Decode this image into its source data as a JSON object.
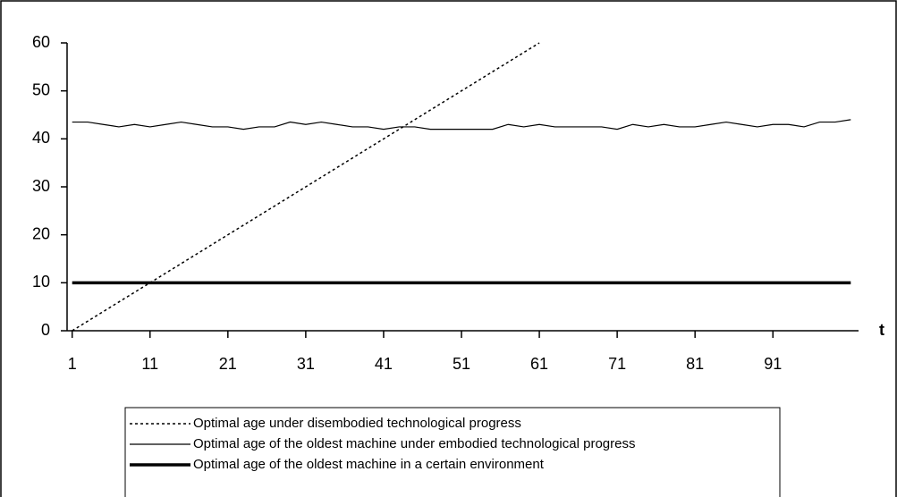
{
  "chart_data": {
    "type": "line",
    "xlabel": "t",
    "x": [
      1,
      3,
      5,
      7,
      9,
      11,
      13,
      15,
      17,
      19,
      21,
      23,
      25,
      27,
      29,
      31,
      33,
      35,
      37,
      39,
      41,
      43,
      45,
      47,
      49,
      51,
      53,
      55,
      57,
      59,
      61,
      63,
      65,
      67,
      69,
      71,
      73,
      75,
      77,
      79,
      81,
      83,
      85,
      87,
      89,
      91,
      93,
      95,
      97,
      99,
      101
    ],
    "xlim": [
      0,
      102
    ],
    "xticks": [
      1,
      11,
      21,
      31,
      41,
      51,
      61,
      71,
      81,
      91
    ],
    "ylim": [
      0,
      60
    ],
    "yticks": [
      0,
      10,
      20,
      30,
      40,
      50,
      60
    ],
    "series": [
      {
        "name": "Optimal age under disembodied technological progress",
        "color": "#000000",
        "line_style": "dotted",
        "line_width": 1.5,
        "values": [
          0,
          2,
          4,
          6,
          8,
          10,
          12,
          14,
          16,
          18,
          20,
          22,
          24,
          26,
          28,
          30,
          32,
          34,
          36,
          38,
          40,
          42,
          44,
          46,
          48,
          50,
          52,
          54,
          56,
          58,
          60,
          null,
          null,
          null,
          null,
          null,
          null,
          null,
          null,
          null,
          null,
          null,
          null,
          null,
          null,
          null,
          null,
          null,
          null,
          null,
          null
        ]
      },
      {
        "name": "Optimal age of the oldest machine under embodied technological progress",
        "color": "#000000",
        "line_style": "solid",
        "line_width": 1.2,
        "values": [
          43.5,
          43.5,
          43,
          42.5,
          43,
          42.5,
          43,
          43.5,
          43,
          42.5,
          42.5,
          42,
          42.5,
          42.5,
          43.5,
          43,
          43.5,
          43,
          42.5,
          42.5,
          42,
          42.5,
          42.5,
          42,
          42,
          42,
          42,
          42,
          43,
          42.5,
          43,
          42.5,
          42.5,
          42.5,
          42.5,
          42,
          43,
          42.5,
          43,
          42.5,
          42.5,
          43,
          43.5,
          43,
          42.5,
          43,
          43,
          42.5,
          43.5,
          43.5,
          44
        ]
      },
      {
        "name": "Optimal age of the oldest machine in a certain environment",
        "color": "#000000",
        "line_style": "solid",
        "line_width": 3.5,
        "values": [
          10,
          10,
          10,
          10,
          10,
          10,
          10,
          10,
          10,
          10,
          10,
          10,
          10,
          10,
          10,
          10,
          10,
          10,
          10,
          10,
          10,
          10,
          10,
          10,
          10,
          10,
          10,
          10,
          10,
          10,
          10,
          10,
          10,
          10,
          10,
          10,
          10,
          10,
          10,
          10,
          10,
          10,
          10,
          10,
          10,
          10,
          10,
          10,
          10,
          10,
          10
        ]
      }
    ]
  }
}
